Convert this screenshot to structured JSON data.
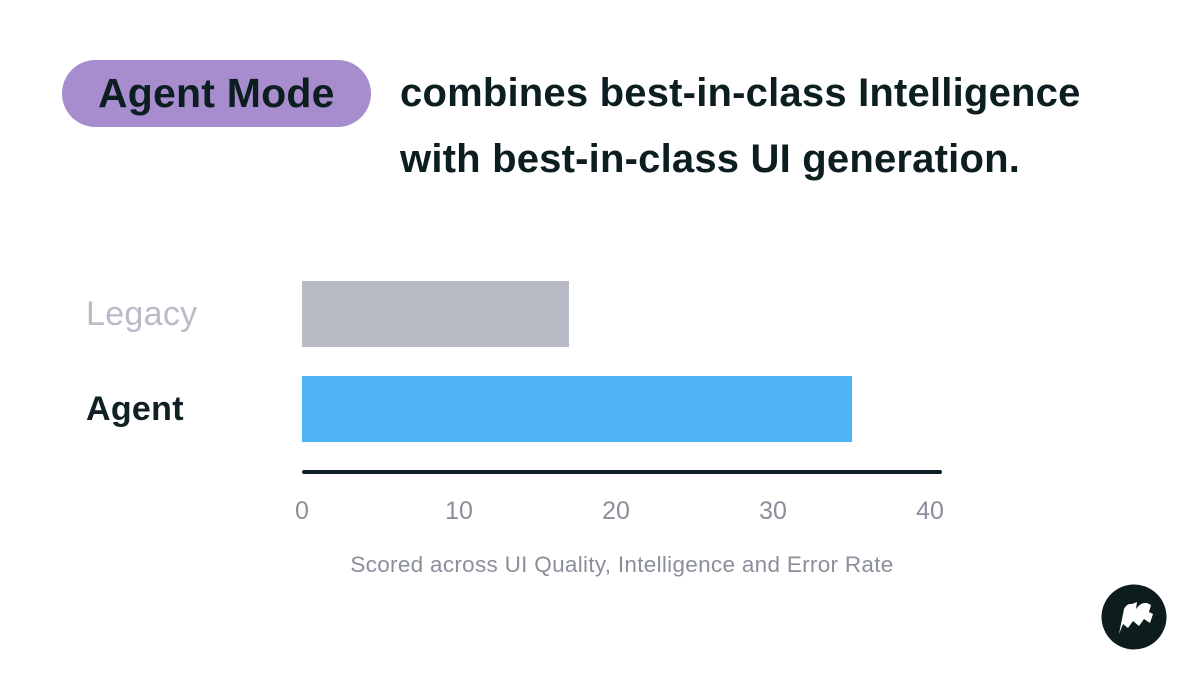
{
  "header": {
    "badge": "Agent Mode",
    "line1": "combines best-in-class Intelligence",
    "line2": "with best-in-class UI generation.",
    "badge_bg": "#a78dce",
    "text_color": "#0d1e20"
  },
  "chart_data": {
    "type": "bar",
    "orientation": "horizontal",
    "categories": [
      "Legacy",
      "Agent"
    ],
    "values": [
      17,
      35
    ],
    "bar_colors": [
      "#b8bbc6",
      "#4eb4f6"
    ],
    "label_colors": [
      "#b9bcc8",
      "#102023"
    ],
    "xlim": [
      0,
      40
    ],
    "xticks": [
      0,
      10,
      20,
      30,
      40
    ],
    "tick_color": "#8b8f9b",
    "axis_color": "#0e2024",
    "caption": "Scored across UI Quality, Intelligence and Error Rate",
    "caption_color": "#8b8f9b",
    "grid": false,
    "legend": false
  },
  "logo": {
    "icon": "flag-icon",
    "circle_color": "#0d1c1c",
    "glyph_color": "#ffffff"
  }
}
